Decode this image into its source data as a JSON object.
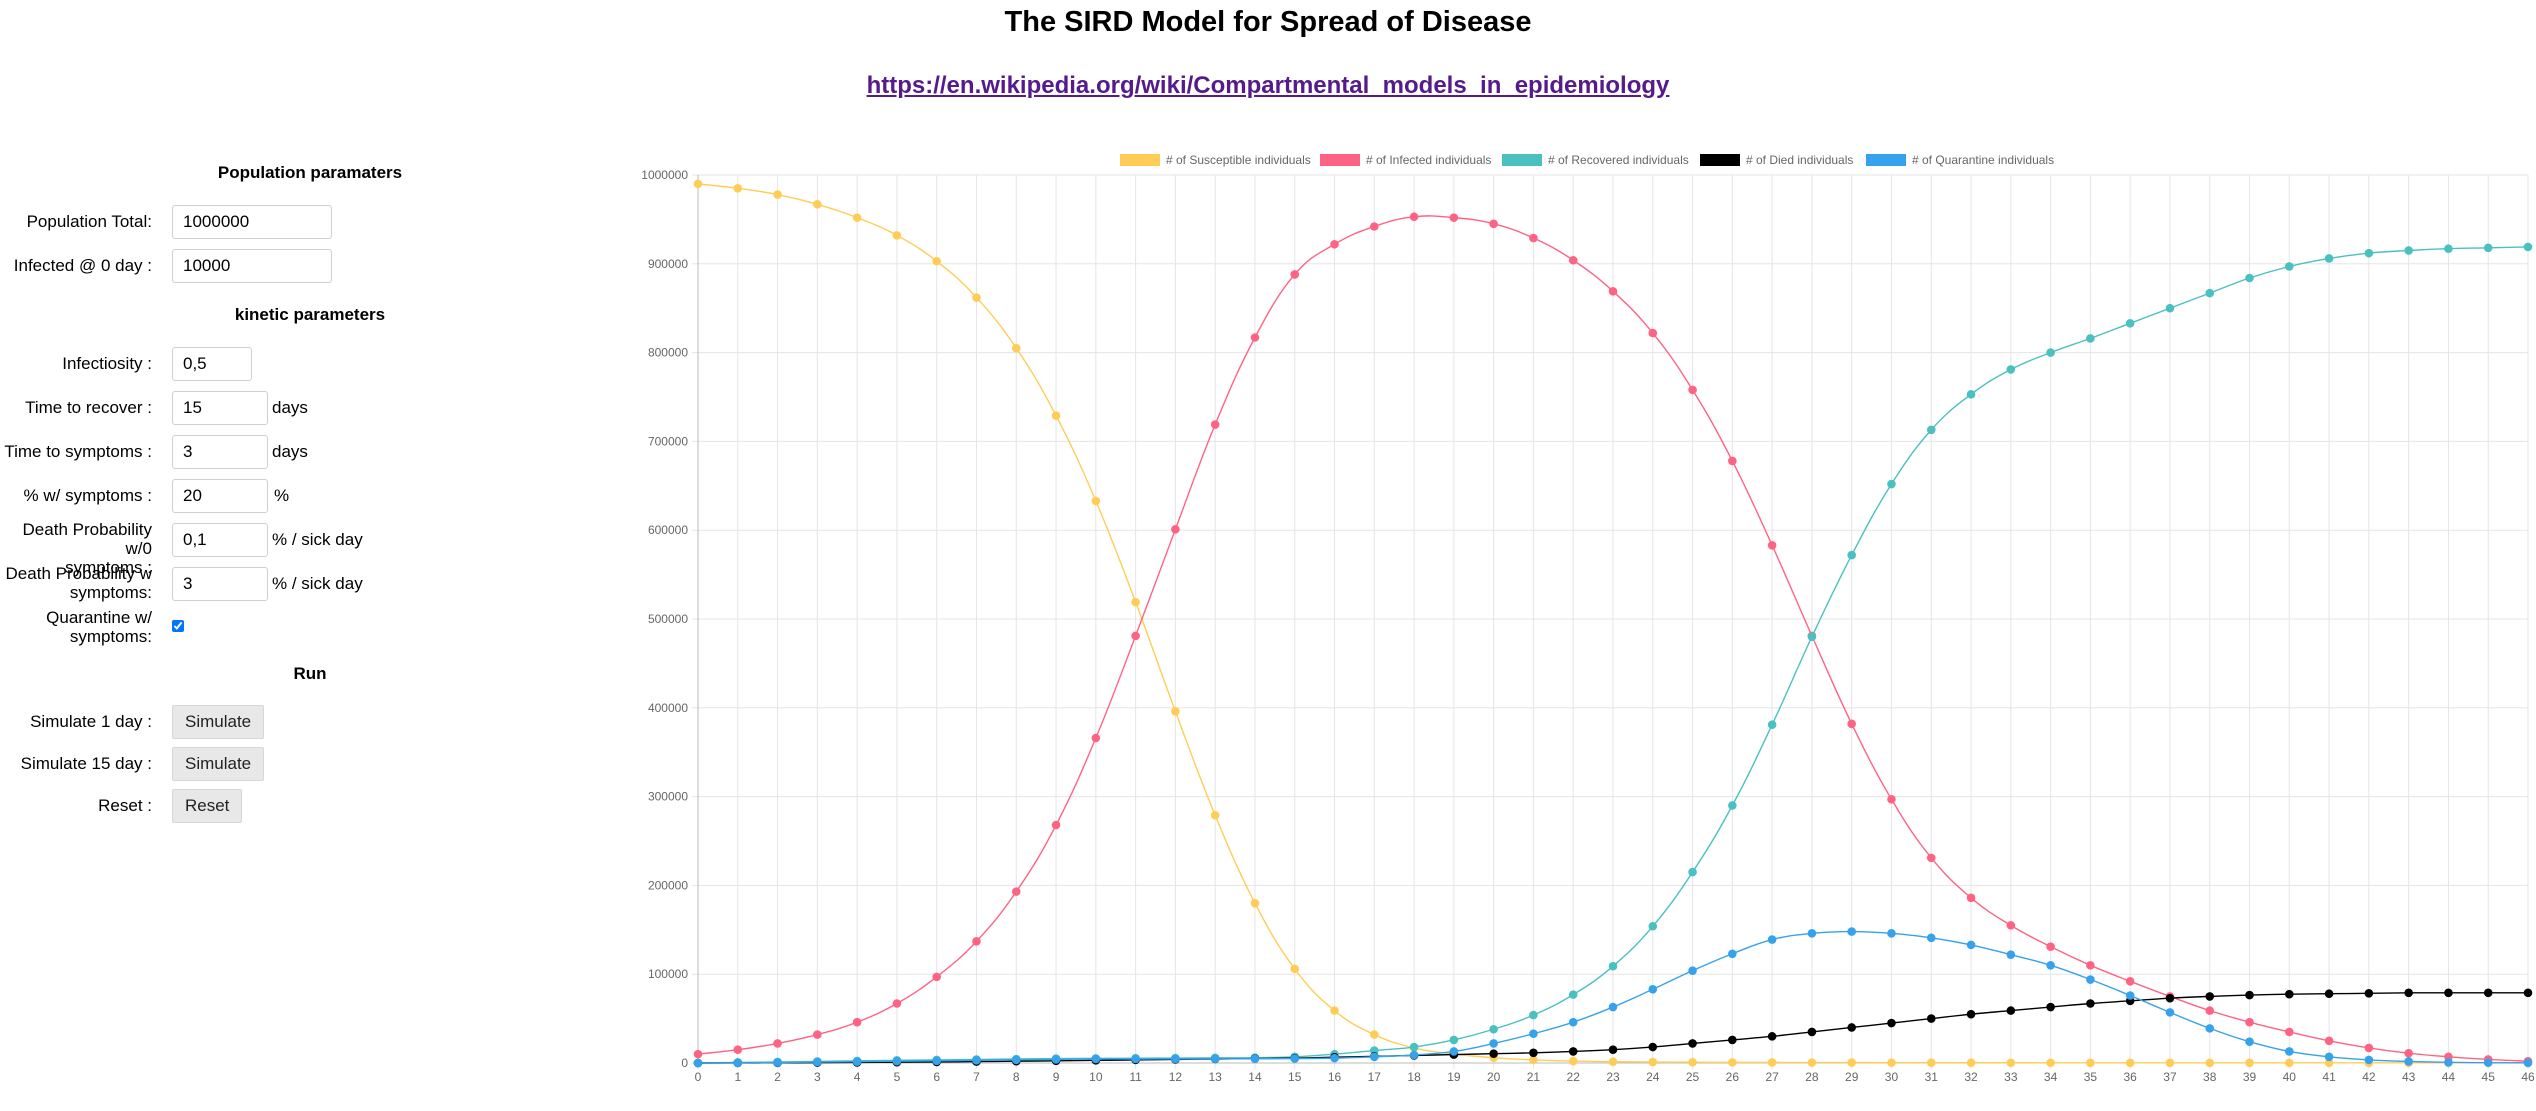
{
  "page": {
    "title": "The SIRD Model for Spread of Disease",
    "link": "https://en.wikipedia.org/wiki/Compartmental_models_in_epidemiology"
  },
  "population": {
    "heading": "Population paramaters",
    "total_label": "Population Total:",
    "total_value": "1000000",
    "infected_label": "Infected @ 0 day :",
    "infected_value": "10000"
  },
  "kinetic": {
    "heading": "kinetic parameters",
    "infectiosity_label": "Infectiosity :",
    "infectiosity_value": "0,5",
    "recover_label": "Time to recover :",
    "recover_value": "15",
    "recover_unit": "days",
    "symptoms_label": "Time to symptoms :",
    "symptoms_value": "3",
    "symptoms_unit": "days",
    "pct_label": "% w/ symptoms :",
    "pct_value": "20",
    "pct_unit": "%",
    "death_wo_label_1": "Death Probability w/0",
    "death_wo_label_2": "symptoms :",
    "death_wo_value": "0,1",
    "death_wo_unit": "% / sick day",
    "death_w_label_1": "Death Probability w",
    "death_w_label_2": "symptoms:",
    "death_w_value": "3",
    "death_w_unit": "% / sick day",
    "quarantine_label_1": "Quarantine w/",
    "quarantine_label_2": "symptoms:",
    "quarantine_checked": true
  },
  "run": {
    "heading": "Run",
    "sim1_label": "Simulate 1 day :",
    "sim1_button": "Simulate",
    "sim15_label": "Simulate 15 day :",
    "sim15_button": "Simulate",
    "reset_label": "Reset :",
    "reset_button": "Reset"
  },
  "chart_data": {
    "type": "line",
    "x": [
      0,
      1,
      2,
      3,
      4,
      5,
      6,
      7,
      8,
      9,
      10,
      11,
      12,
      13,
      14,
      15,
      16,
      17,
      18,
      19,
      20,
      21,
      22,
      23,
      24,
      25,
      26,
      27,
      28,
      29,
      30,
      31,
      32,
      33,
      34,
      35,
      36,
      37,
      38,
      39,
      40,
      41,
      42,
      43,
      44,
      45,
      46
    ],
    "xlim": [
      0,
      46
    ],
    "ylim": [
      0,
      1000000
    ],
    "yticks": [
      0,
      100000,
      200000,
      300000,
      400000,
      500000,
      600000,
      700000,
      800000,
      900000,
      1000000
    ],
    "grid": true,
    "legend_position": "top",
    "series": [
      {
        "name": "# of Susceptible individuals",
        "color": "#ffcd56",
        "values": [
          990000,
          985000,
          978000,
          967000,
          952000,
          932000,
          903000,
          862000,
          805000,
          729000,
          633000,
          519000,
          396000,
          279000,
          180000,
          106000,
          59000,
          32000,
          17000,
          10000,
          6000,
          3500,
          2200,
          1500,
          1100,
          900,
          700,
          600,
          500,
          450,
          400,
          350,
          300,
          280,
          260,
          250,
          240,
          230,
          220,
          210,
          200,
          190,
          180,
          170,
          160,
          150,
          140
        ]
      },
      {
        "name": "# of Infected individuals",
        "color": "#ff6384",
        "values": [
          10000,
          15000,
          22000,
          32000,
          46000,
          67000,
          97000,
          137000,
          193000,
          268000,
          366000,
          481000,
          601000,
          719000,
          817000,
          888000,
          922000,
          942000,
          953000,
          952000,
          945000,
          929000,
          904000,
          869000,
          822000,
          758000,
          678000,
          583000,
          481000,
          382000,
          297000,
          231000,
          186000,
          155000,
          131000,
          110000,
          92000,
          75000,
          59000,
          46000,
          35000,
          25000,
          17000,
          11000,
          7000,
          4000,
          2000
        ]
      },
      {
        "name": "# of Recovered individuals",
        "color": "#4bc0c0",
        "values": [
          0,
          600,
          1200,
          1800,
          2400,
          3000,
          3500,
          4000,
          4500,
          5000,
          5200,
          5400,
          5600,
          5800,
          6000,
          7000,
          10000,
          14000,
          18000,
          26000,
          38000,
          54000,
          77000,
          109000,
          154000,
          215000,
          290000,
          381000,
          480000,
          572000,
          652000,
          713000,
          753000,
          781000,
          800000,
          816000,
          833000,
          850000,
          867000,
          884000,
          897000,
          906000,
          912000,
          915000,
          917000,
          918000,
          919000
        ]
      },
      {
        "name": "# of Died individuals",
        "color": "#000000",
        "values": [
          0,
          100,
          200,
          400,
          600,
          900,
          1200,
          1600,
          2000,
          2500,
          3000,
          3500,
          4000,
          4500,
          5000,
          5500,
          6500,
          7500,
          8500,
          9500,
          10500,
          11500,
          13000,
          15000,
          18000,
          22000,
          26000,
          30000,
          35000,
          40000,
          45000,
          50000,
          55000,
          59000,
          63000,
          67000,
          70000,
          73000,
          75000,
          76500,
          77500,
          78000,
          78500,
          79000,
          79000,
          79000,
          79000
        ]
      },
      {
        "name": "# of Quarantine individuals",
        "color": "#36a2eb",
        "values": [
          0,
          200,
          500,
          1000,
          1500,
          2000,
          2500,
          3000,
          3500,
          4000,
          4500,
          4500,
          4600,
          4700,
          4800,
          5000,
          5500,
          7000,
          9000,
          13000,
          22000,
          33000,
          46000,
          63000,
          83000,
          104000,
          123000,
          139000,
          146000,
          148000,
          146000,
          141000,
          133000,
          122000,
          110000,
          94000,
          76000,
          57000,
          39000,
          24000,
          13000,
          7000,
          3500,
          1800,
          800,
          400,
          200
        ]
      }
    ]
  }
}
